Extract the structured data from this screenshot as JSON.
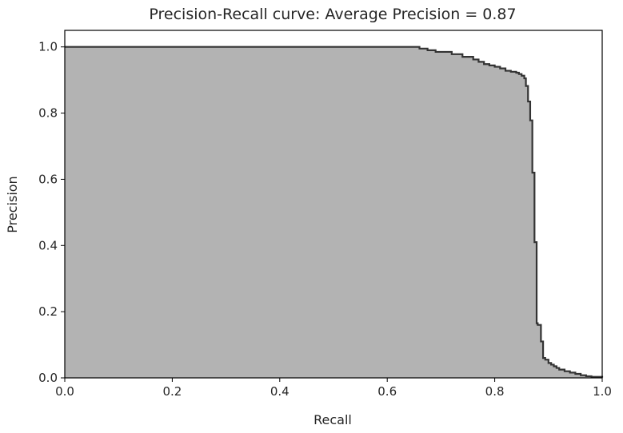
{
  "chart_data": {
    "type": "area",
    "title": "Precision-Recall curve: Average Precision = 0.87",
    "xlabel": "Recall",
    "ylabel": "Precision",
    "xlim": [
      0.0,
      1.0
    ],
    "ylim": [
      0.0,
      1.05
    ],
    "grid": false,
    "legend": "none",
    "x_ticks": [
      "0.0",
      "0.2",
      "0.4",
      "0.6",
      "0.8",
      "1.0"
    ],
    "y_ticks": [
      "0.0",
      "0.2",
      "0.4",
      "0.6",
      "0.8",
      "1.0"
    ],
    "fill_color": "#b3b3b3",
    "line_color": "#333333",
    "step": "post",
    "series": [
      {
        "recall": [
          0.0,
          0.66,
          0.675,
          0.69,
          0.72,
          0.74,
          0.76,
          0.77,
          0.78,
          0.79,
          0.8,
          0.81,
          0.82,
          0.83,
          0.84,
          0.845,
          0.85,
          0.855,
          0.858,
          0.862,
          0.866,
          0.87,
          0.874,
          0.878,
          0.88,
          0.886,
          0.89,
          0.894,
          0.9,
          0.905,
          0.91,
          0.915,
          0.92,
          0.93,
          0.94,
          0.95,
          0.96,
          0.97,
          0.98,
          1.0
        ],
        "precision": [
          1.0,
          0.995,
          0.99,
          0.985,
          0.978,
          0.97,
          0.962,
          0.955,
          0.948,
          0.944,
          0.94,
          0.935,
          0.928,
          0.925,
          0.922,
          0.918,
          0.913,
          0.905,
          0.882,
          0.835,
          0.778,
          0.62,
          0.41,
          0.165,
          0.16,
          0.11,
          0.06,
          0.055,
          0.045,
          0.04,
          0.035,
          0.03,
          0.025,
          0.02,
          0.016,
          0.012,
          0.008,
          0.005,
          0.003,
          0.001
        ]
      }
    ]
  }
}
